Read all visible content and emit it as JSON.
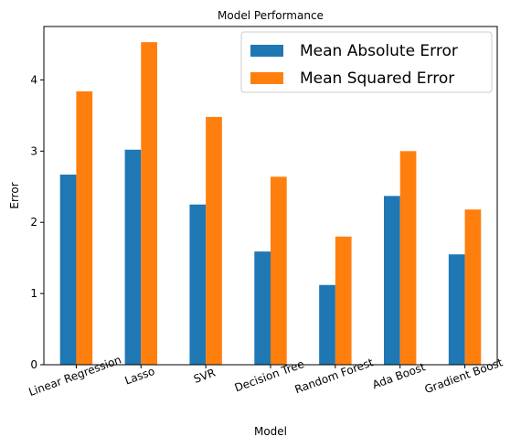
{
  "chart_data": {
    "type": "bar",
    "title": "Model Performance",
    "xlabel": "Model",
    "ylabel": "Error",
    "categories": [
      "Linear Regression",
      "Lasso",
      "SVR",
      "Decision Tree",
      "Random Forest",
      "Ada Boost",
      "Gradient Boost"
    ],
    "series": [
      {
        "name": "Mean Absolute Error",
        "color": "#1f77b4",
        "values": [
          2.67,
          3.02,
          2.25,
          1.59,
          1.12,
          2.37,
          1.55
        ]
      },
      {
        "name": "Mean Squared Error",
        "color": "#ff7f0e",
        "values": [
          3.84,
          4.53,
          3.48,
          2.64,
          1.8,
          3.0,
          2.18
        ]
      }
    ],
    "ylim": [
      0,
      4.75
    ],
    "yticks": [
      0,
      1,
      2,
      3,
      4
    ],
    "grid": false,
    "legend_position": "top-right"
  }
}
